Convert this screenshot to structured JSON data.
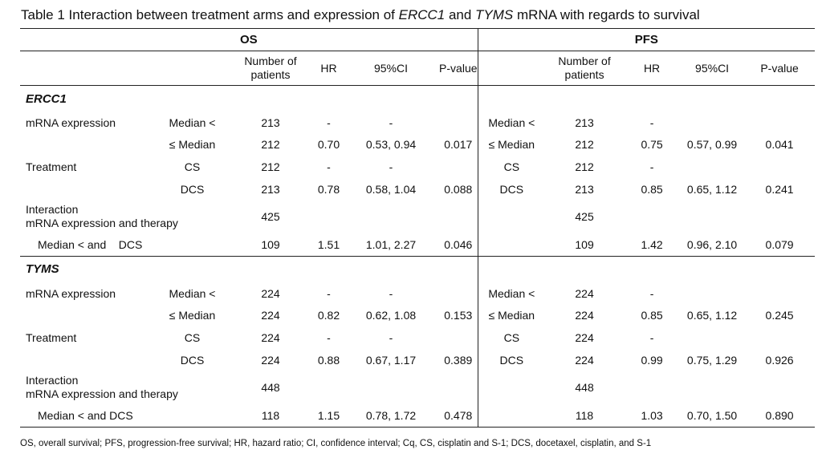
{
  "title": {
    "pre": "Table 1 Interaction between treatment arms and expression of ",
    "gene1": "ERCC1",
    "and": " and ",
    "gene2": "TYMS",
    "post": " mRNA with regards to survival"
  },
  "headers": {
    "os": "OS",
    "pfs": "PFS",
    "os_cols": [
      "Number of patients",
      "HR",
      "95%CI",
      "P-value"
    ],
    "pfs_cols": [
      "Number of patients",
      "HR",
      "95%CI",
      "P-value"
    ]
  },
  "sections": [
    {
      "gene": "ERCC1",
      "rows": [
        {
          "label": "mRNA expression",
          "sub": "Median <",
          "os": [
            "213",
            "-",
            "-",
            ""
          ],
          "pfs_sub": "Median <",
          "pfs": [
            "213",
            "-",
            "",
            ""
          ]
        },
        {
          "label": "",
          "sub": "≤ Median",
          "os": [
            "212",
            "0.70",
            "0.53, 0.94",
            "0.017"
          ],
          "pfs_sub": "≤ Median",
          "pfs": [
            "212",
            "0.75",
            "0.57, 0.99",
            "0.041"
          ]
        },
        {
          "label": "Treatment",
          "sub": "CS",
          "os": [
            "212",
            "-",
            "-",
            ""
          ],
          "pfs_sub": "CS",
          "pfs": [
            "212",
            "-",
            "",
            ""
          ]
        },
        {
          "label": "",
          "sub": "DCS",
          "os": [
            "213",
            "0.78",
            "0.58, 1.04",
            "0.088"
          ],
          "pfs_sub": "DCS",
          "pfs": [
            "213",
            "0.85",
            "0.65, 1.12",
            "0.241"
          ]
        },
        {
          "label": "Interaction\nmRNA expression and therapy",
          "sub": "",
          "os": [
            "425",
            "",
            "",
            ""
          ],
          "pfs_sub": "",
          "pfs": [
            "425",
            "",
            "",
            ""
          ]
        },
        {
          "label": "Median < and    DCS",
          "sub": "",
          "os": [
            "109",
            "1.51",
            "1.01, 2.27",
            "0.046"
          ],
          "pfs_sub": "",
          "pfs": [
            "109",
            "1.42",
            "0.96, 2.10",
            "0.079"
          ]
        }
      ]
    },
    {
      "gene": "TYMS",
      "rows": [
        {
          "label": "mRNA expression",
          "sub": "Median <",
          "os": [
            "224",
            "-",
            "-",
            ""
          ],
          "pfs_sub": "Median <",
          "pfs": [
            "224",
            "-",
            "",
            ""
          ]
        },
        {
          "label": "",
          "sub": "≤ Median",
          "os": [
            "224",
            "0.82",
            "0.62, 1.08",
            "0.153"
          ],
          "pfs_sub": "≤ Median",
          "pfs": [
            "224",
            "0.85",
            "0.65, 1.12",
            "0.245"
          ]
        },
        {
          "label": "Treatment",
          "sub": "CS",
          "os": [
            "224",
            "-",
            "-",
            ""
          ],
          "pfs_sub": "CS",
          "pfs": [
            "224",
            "-",
            "",
            ""
          ]
        },
        {
          "label": "",
          "sub": "DCS",
          "os": [
            "224",
            "0.88",
            "0.67, 1.17",
            "0.389"
          ],
          "pfs_sub": "DCS",
          "pfs": [
            "224",
            "0.99",
            "0.75, 1.29",
            "0.926"
          ]
        },
        {
          "label": "Interaction\nmRNA expression and therapy",
          "sub": "",
          "os": [
            "448",
            "",
            "",
            ""
          ],
          "pfs_sub": "",
          "pfs": [
            "448",
            "",
            "",
            ""
          ]
        },
        {
          "label": "Median < and DCS",
          "sub": "",
          "os": [
            "118",
            "1.15",
            "0.78, 1.72",
            "0.478"
          ],
          "pfs_sub": "",
          "pfs": [
            "118",
            "1.03",
            "0.70, 1.50",
            "0.890"
          ]
        }
      ]
    }
  ],
  "footnote": "OS, overall survival; PFS, progression-free survival; HR, hazard ratio; CI, confidence interval; Cq, CS, cisplatin and S-1; DCS, docetaxel, cisplatin, and S-1"
}
